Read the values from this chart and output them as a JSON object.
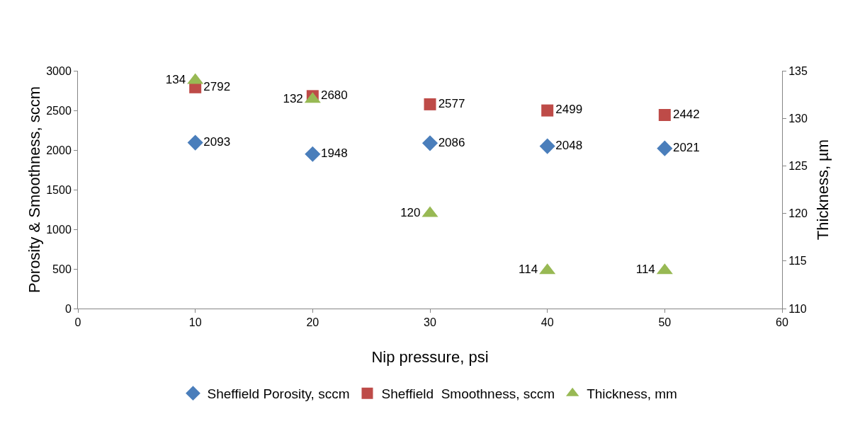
{
  "chart_data": {
    "type": "scatter",
    "xlabel": "Nip pressure, psi",
    "ylabel": "Porosity & Smoothness, sccm",
    "y2label": "Thickness, µm",
    "x": [
      10,
      20,
      30,
      40,
      50
    ],
    "series": [
      {
        "name": "Sheffield Porosity, sccm",
        "color": "#4a7ebb",
        "marker": "diamond",
        "values": [
          2093,
          1948,
          2086,
          2048,
          2021
        ]
      },
      {
        "name": "Sheffield  Smoothness, sccm",
        "color": "#be4b48",
        "marker": "square",
        "values": [
          2792,
          2680,
          2577,
          2499,
          2442
        ]
      },
      {
        "name": "Thickness, mm",
        "color": "#98b954",
        "marker": "triangle",
        "axis": "y2",
        "values": [
          134,
          132,
          120,
          114,
          114
        ]
      }
    ],
    "xlim": [
      0,
      60
    ],
    "xticks": [
      0,
      10,
      20,
      30,
      40,
      50,
      60
    ],
    "ylim": [
      0,
      3000
    ],
    "yticks": [
      0,
      500,
      1000,
      1500,
      2000,
      2500,
      3000
    ],
    "y2lim": [
      110,
      135
    ],
    "y2ticks": [
      110,
      115,
      120,
      125,
      130,
      135
    ],
    "data_labels": true,
    "grid": false,
    "legend": "bottom"
  }
}
